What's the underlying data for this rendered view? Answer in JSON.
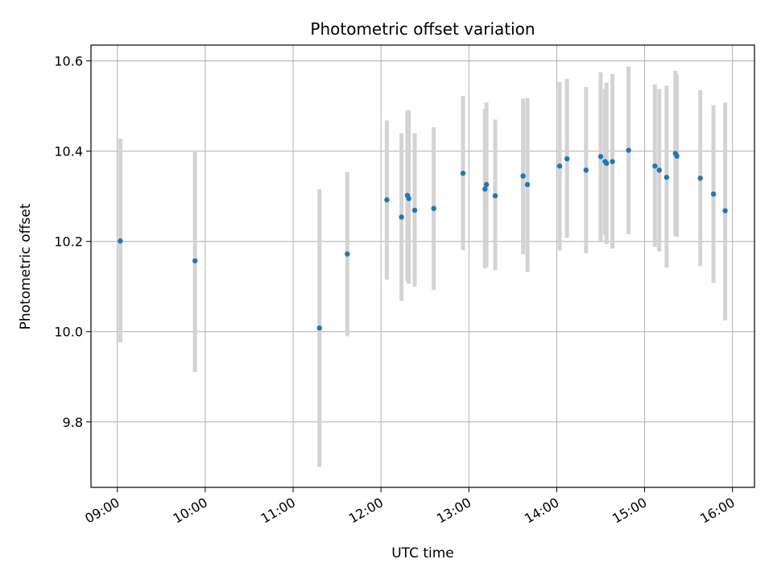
{
  "chart_data": {
    "type": "scatter",
    "title": "Photometric offset variation",
    "xlabel": "UTC time",
    "ylabel": "Photometric offset",
    "x_axis_type": "time",
    "x_ticks": [
      "09:00",
      "10:00",
      "11:00",
      "12:00",
      "13:00",
      "14:00",
      "15:00",
      "16:00"
    ],
    "x_tick_rotation": 30,
    "xlim": [
      "08:42",
      "16:15"
    ],
    "y_ticks": [
      9.8,
      10.0,
      10.2,
      10.4,
      10.6
    ],
    "y_tick_labels": [
      "9.8",
      "10.0",
      "10.2",
      "10.4",
      "10.6"
    ],
    "ylim": [
      9.655,
      10.635
    ],
    "grid": true,
    "colors": {
      "points": "#1f77b4",
      "error_bars": "#d3d3d3",
      "grid": "#b0b0b0",
      "axes": "#000000"
    },
    "points": [
      {
        "x": "09:02",
        "y": 10.201,
        "low": 9.976,
        "high": 10.428
      },
      {
        "x": "09:53",
        "y": 10.157,
        "low": 9.91,
        "high": 10.402
      },
      {
        "x": "11:18",
        "y": 10.008,
        "low": 9.7,
        "high": 10.316
      },
      {
        "x": "11:37",
        "y": 10.172,
        "low": 9.99,
        "high": 10.354
      },
      {
        "x": "12:04",
        "y": 10.292,
        "low": 10.115,
        "high": 10.468
      },
      {
        "x": "12:14",
        "y": 10.254,
        "low": 10.068,
        "high": 10.44
      },
      {
        "x": "12:18",
        "y": 10.302,
        "low": 10.112,
        "high": 10.49
      },
      {
        "x": "12:19",
        "y": 10.295,
        "low": 10.106,
        "high": 10.49
      },
      {
        "x": "12:23",
        "y": 10.269,
        "low": 10.1,
        "high": 10.44
      },
      {
        "x": "12:36",
        "y": 10.273,
        "low": 10.092,
        "high": 10.453
      },
      {
        "x": "12:56",
        "y": 10.351,
        "low": 10.181,
        "high": 10.522
      },
      {
        "x": "13:11",
        "y": 10.316,
        "low": 10.14,
        "high": 10.494
      },
      {
        "x": "13:12",
        "y": 10.326,
        "low": 10.143,
        "high": 10.508
      },
      {
        "x": "13:18",
        "y": 10.301,
        "low": 10.136,
        "high": 10.47
      },
      {
        "x": "13:37",
        "y": 10.345,
        "low": 10.172,
        "high": 10.516
      },
      {
        "x": "13:40",
        "y": 10.326,
        "low": 10.132,
        "high": 10.518
      },
      {
        "x": "14:02",
        "y": 10.367,
        "low": 10.18,
        "high": 10.553
      },
      {
        "x": "14:07",
        "y": 10.383,
        "low": 10.208,
        "high": 10.56
      },
      {
        "x": "14:20",
        "y": 10.358,
        "low": 10.174,
        "high": 10.542
      },
      {
        "x": "14:30",
        "y": 10.388,
        "low": 10.2,
        "high": 10.575
      },
      {
        "x": "14:33",
        "y": 10.377,
        "low": 10.214,
        "high": 10.538
      },
      {
        "x": "14:34",
        "y": 10.373,
        "low": 10.194,
        "high": 10.552
      },
      {
        "x": "14:38",
        "y": 10.377,
        "low": 10.184,
        "high": 10.571
      },
      {
        "x": "14:49",
        "y": 10.402,
        "low": 10.216,
        "high": 10.588
      },
      {
        "x": "15:07",
        "y": 10.367,
        "low": 10.188,
        "high": 10.548
      },
      {
        "x": "15:10",
        "y": 10.358,
        "low": 10.178,
        "high": 10.538
      },
      {
        "x": "15:15",
        "y": 10.342,
        "low": 10.142,
        "high": 10.545
      },
      {
        "x": "15:21",
        "y": 10.395,
        "low": 10.212,
        "high": 10.578
      },
      {
        "x": "15:22",
        "y": 10.389,
        "low": 10.21,
        "high": 10.57
      },
      {
        "x": "15:38",
        "y": 10.34,
        "low": 10.145,
        "high": 10.535
      },
      {
        "x": "15:47",
        "y": 10.305,
        "low": 10.108,
        "high": 10.502
      },
      {
        "x": "15:55",
        "y": 10.268,
        "low": 10.025,
        "high": 10.508
      }
    ]
  }
}
